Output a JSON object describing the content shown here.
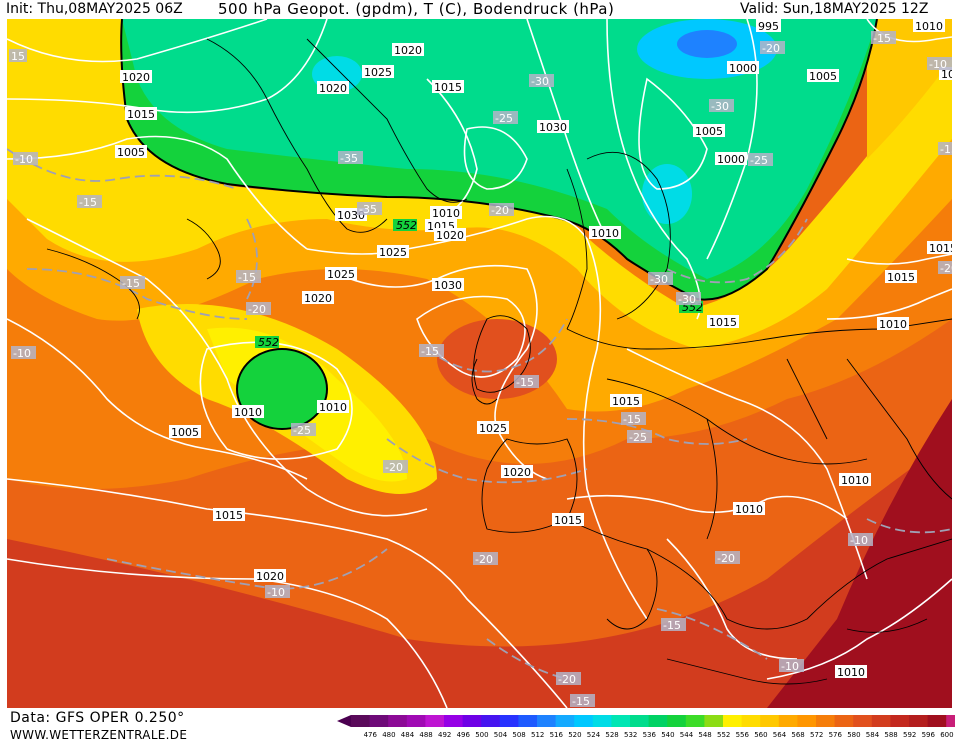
{
  "header": {
    "init": "Init: Thu,08MAY2025 06Z",
    "title": "500 hPa Geopot. (gpdm), T (C), Bodendruck (hPa)",
    "valid": "Valid: Sun,18MAY2025 12Z"
  },
  "footer": {
    "data_source": "Data: GFS OPER 0.250°",
    "website": "WWW.WETTERZENTRALE.DE"
  },
  "colorbar": {
    "levels": [
      476,
      480,
      484,
      488,
      492,
      496,
      500,
      504,
      508,
      512,
      516,
      520,
      524,
      528,
      532,
      536,
      540,
      544,
      548,
      552,
      556,
      560,
      564,
      568,
      572,
      576,
      580,
      584,
      588,
      592,
      596,
      600
    ],
    "colors": [
      "#5a0a5a",
      "#6e0a78",
      "#8c0a96",
      "#a00ab4",
      "#be14d2",
      "#9600e6",
      "#6e00e6",
      "#4614f0",
      "#2832ff",
      "#1e5aff",
      "#1e82ff",
      "#14aaff",
      "#00c8ff",
      "#00dce6",
      "#00e6b4",
      "#00dc8c",
      "#00d264",
      "#14d23c",
      "#3cdc28",
      "#8cdc14",
      "#fff000",
      "#ffdc00",
      "#ffc800",
      "#ffaa00",
      "#ff9600",
      "#f57d0a",
      "#eb6414",
      "#e1501e",
      "#d23c1e",
      "#c3281e",
      "#b41e1e",
      "#a00f1e",
      "#c81e78"
    ],
    "bar_colors_lo": "#4b0050",
    "bar_colors_hi": "#e61e8c"
  },
  "labels": {
    "geopot_552": "552",
    "pressure": [
      "1020",
      "1020",
      "1025",
      "1015",
      "1015",
      "1005",
      "1030",
      "1010",
      "1015",
      "1020",
      "1025",
      "1030",
      "1025",
      "1020",
      "1010",
      "1005",
      "1010",
      "1025",
      "1020",
      "1015",
      "1020",
      "1015",
      "1010",
      "1030",
      "1020",
      "1000",
      "1005",
      "1000",
      "1005",
      "995",
      "1010",
      "1015",
      "1015",
      "1010",
      "1010",
      "1010",
      "1015",
      "1015",
      "1010",
      "1015"
    ],
    "temperature": [
      "15",
      "-10",
      "-15",
      "-15",
      "-15",
      "-20",
      "-10",
      "-15",
      "-15",
      "-35",
      "-30",
      "-25",
      "-20",
      "-20",
      "-25",
      "-20",
      "-15",
      "-20",
      "-15",
      "-30",
      "-35",
      "-25",
      "-30",
      "-20",
      "-15",
      "-10",
      "-15",
      "-20",
      "-30",
      "-25",
      "-20",
      "-15",
      "-10",
      "-10",
      "-10"
    ]
  }
}
